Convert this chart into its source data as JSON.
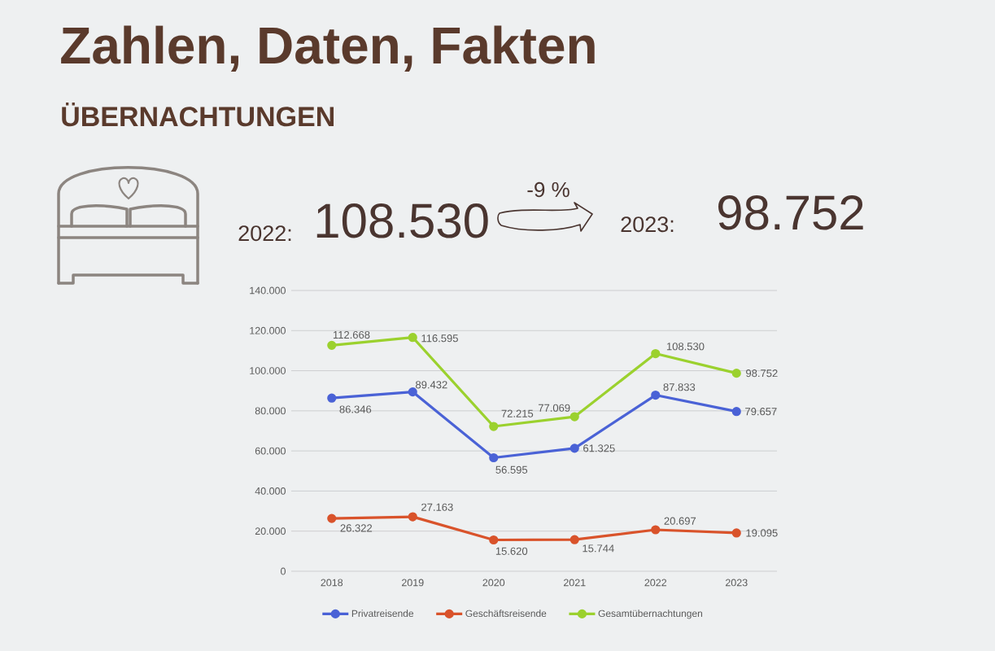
{
  "chart_data": {
    "type": "line",
    "title": "Zahlen, Daten, Fakten",
    "subtitle": "ÜBERNACHTUNGEN",
    "annotations": [
      "2022:",
      "108.530",
      "-9 %",
      "2023:",
      "98.752"
    ],
    "categories": [
      "2018",
      "2019",
      "2020",
      "2021",
      "2022",
      "2023"
    ],
    "series": [
      {
        "name": "Privatreisende",
        "color": "#4a62d6",
        "values": [
          86346,
          89432,
          56595,
          61325,
          87833,
          79657
        ],
        "value_labels": [
          "86.346",
          "89.432",
          "56.595",
          "61.325",
          "87.833",
          "79.657"
        ]
      },
      {
        "name": "Geschäftsreisende",
        "color": "#d9532b",
        "values": [
          26322,
          27163,
          15620,
          15744,
          20697,
          19095
        ],
        "value_labels": [
          "26.322",
          "27.163",
          "15.620",
          "15.744",
          "20.697",
          "19.095"
        ]
      },
      {
        "name": "Gesamtübernachtungen",
        "color": "#9bd12e",
        "values": [
          112668,
          116595,
          72215,
          77069,
          108530,
          98752
        ],
        "value_labels": [
          "112.668",
          "116.595",
          "72.215",
          "77.069",
          "108.530",
          "98.752"
        ]
      }
    ],
    "ylim": [
      0,
      140000
    ],
    "yticks": [
      0,
      {
        "value": 20000,
        "label": "20.000"
      },
      {
        "value": 40000,
        "label": "40.000"
      },
      {
        "value": 60000,
        "label": "60.000"
      },
      {
        "value": 80000,
        "label": "80.000"
      },
      {
        "value": 100000,
        "label": "100.000"
      },
      {
        "value": 120000,
        "label": "120.000"
      },
      {
        "value": 140000,
        "label": "140.000"
      }
    ],
    "grid": "y",
    "legend": "bottom",
    "marker": "circle",
    "line_style": "solid"
  }
}
